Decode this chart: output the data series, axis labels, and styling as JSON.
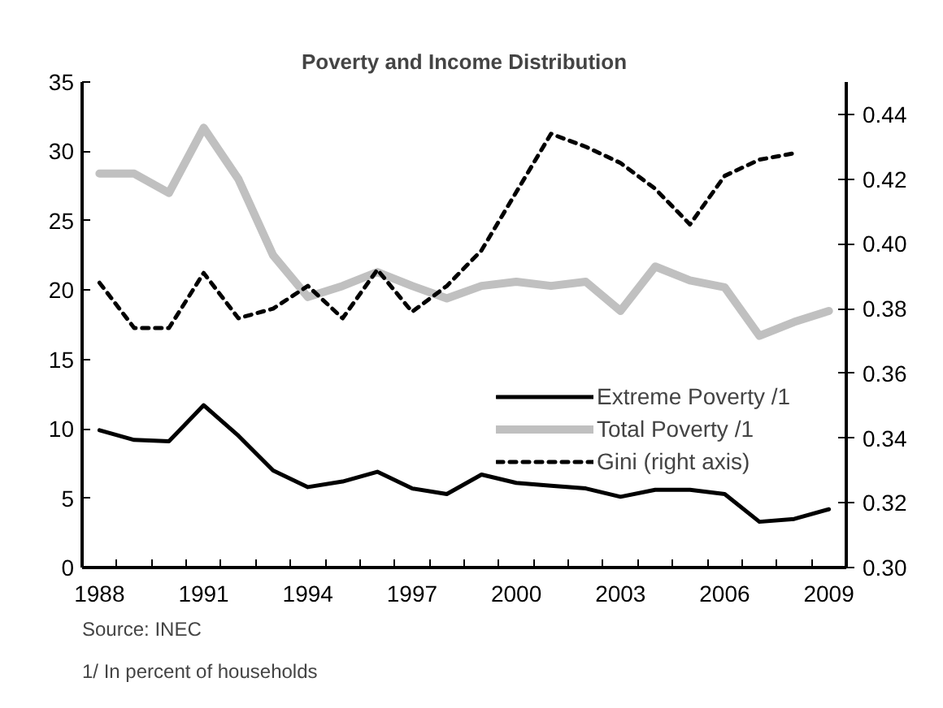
{
  "chart_data": {
    "type": "line",
    "title": "Poverty and Income Distribution",
    "categories": [
      "1988",
      null,
      null,
      "1991",
      null,
      null,
      "1994",
      null,
      null,
      "1997",
      null,
      null,
      "2000",
      null,
      null,
      "2003",
      null,
      null,
      "2006",
      null,
      null,
      "2009"
    ],
    "series": [
      {
        "name": "Extreme Poverty /1",
        "color": "#000000",
        "values": [
          9.9,
          9.2,
          9.1,
          11.7,
          9.5,
          7.0,
          5.8,
          6.2,
          6.9,
          5.7,
          5.3,
          6.7,
          6.1,
          5.9,
          5.7,
          5.1,
          5.6,
          5.6,
          5.3,
          3.3,
          3.5,
          4.2
        ]
      },
      {
        "name": "Total Poverty /1",
        "color": "#c0c0c0",
        "values": [
          28.4,
          28.4,
          27.0,
          31.7,
          28.0,
          22.5,
          19.5,
          20.3,
          21.3,
          20.3,
          19.4,
          20.3,
          20.6,
          20.3,
          20.6,
          18.5,
          21.7,
          20.7,
          20.2,
          16.7,
          17.7,
          18.5
        ]
      },
      {
        "name": "Gini (right axis)",
        "color": "#000000",
        "axis": "y2",
        "line_style": "dashed",
        "values": [
          0.388,
          0.374,
          0.374,
          0.391,
          0.377,
          0.38,
          0.387,
          0.377,
          0.392,
          0.379,
          0.387,
          0.398,
          0.416,
          0.434,
          0.43,
          0.425,
          0.417,
          0.406,
          0.421,
          0.426,
          0.428,
          null
        ]
      }
    ],
    "ylim": [
      0,
      35
    ],
    "yticks": [
      0,
      5,
      10,
      15,
      20,
      25,
      30,
      35
    ],
    "y2lim": [
      0.3,
      0.45
    ],
    "y2ticks": [
      {
        "value": 0.3,
        "label": "0.30"
      },
      {
        "value": 0.32,
        "label": "0.32"
      },
      {
        "value": 0.34,
        "label": "0.34"
      },
      {
        "value": 0.36,
        "label": "0.36"
      },
      {
        "value": 0.38,
        "label": "0.38"
      },
      {
        "value": 0.4,
        "label": "0.40"
      },
      {
        "value": 0.42,
        "label": "0.42"
      },
      {
        "value": 0.44,
        "label": "0.44"
      }
    ],
    "legend": "right",
    "grid": false,
    "line_style": "solid",
    "marker": "none",
    "annotations": [
      "Source: INEC",
      "1/ In percent of households"
    ]
  }
}
